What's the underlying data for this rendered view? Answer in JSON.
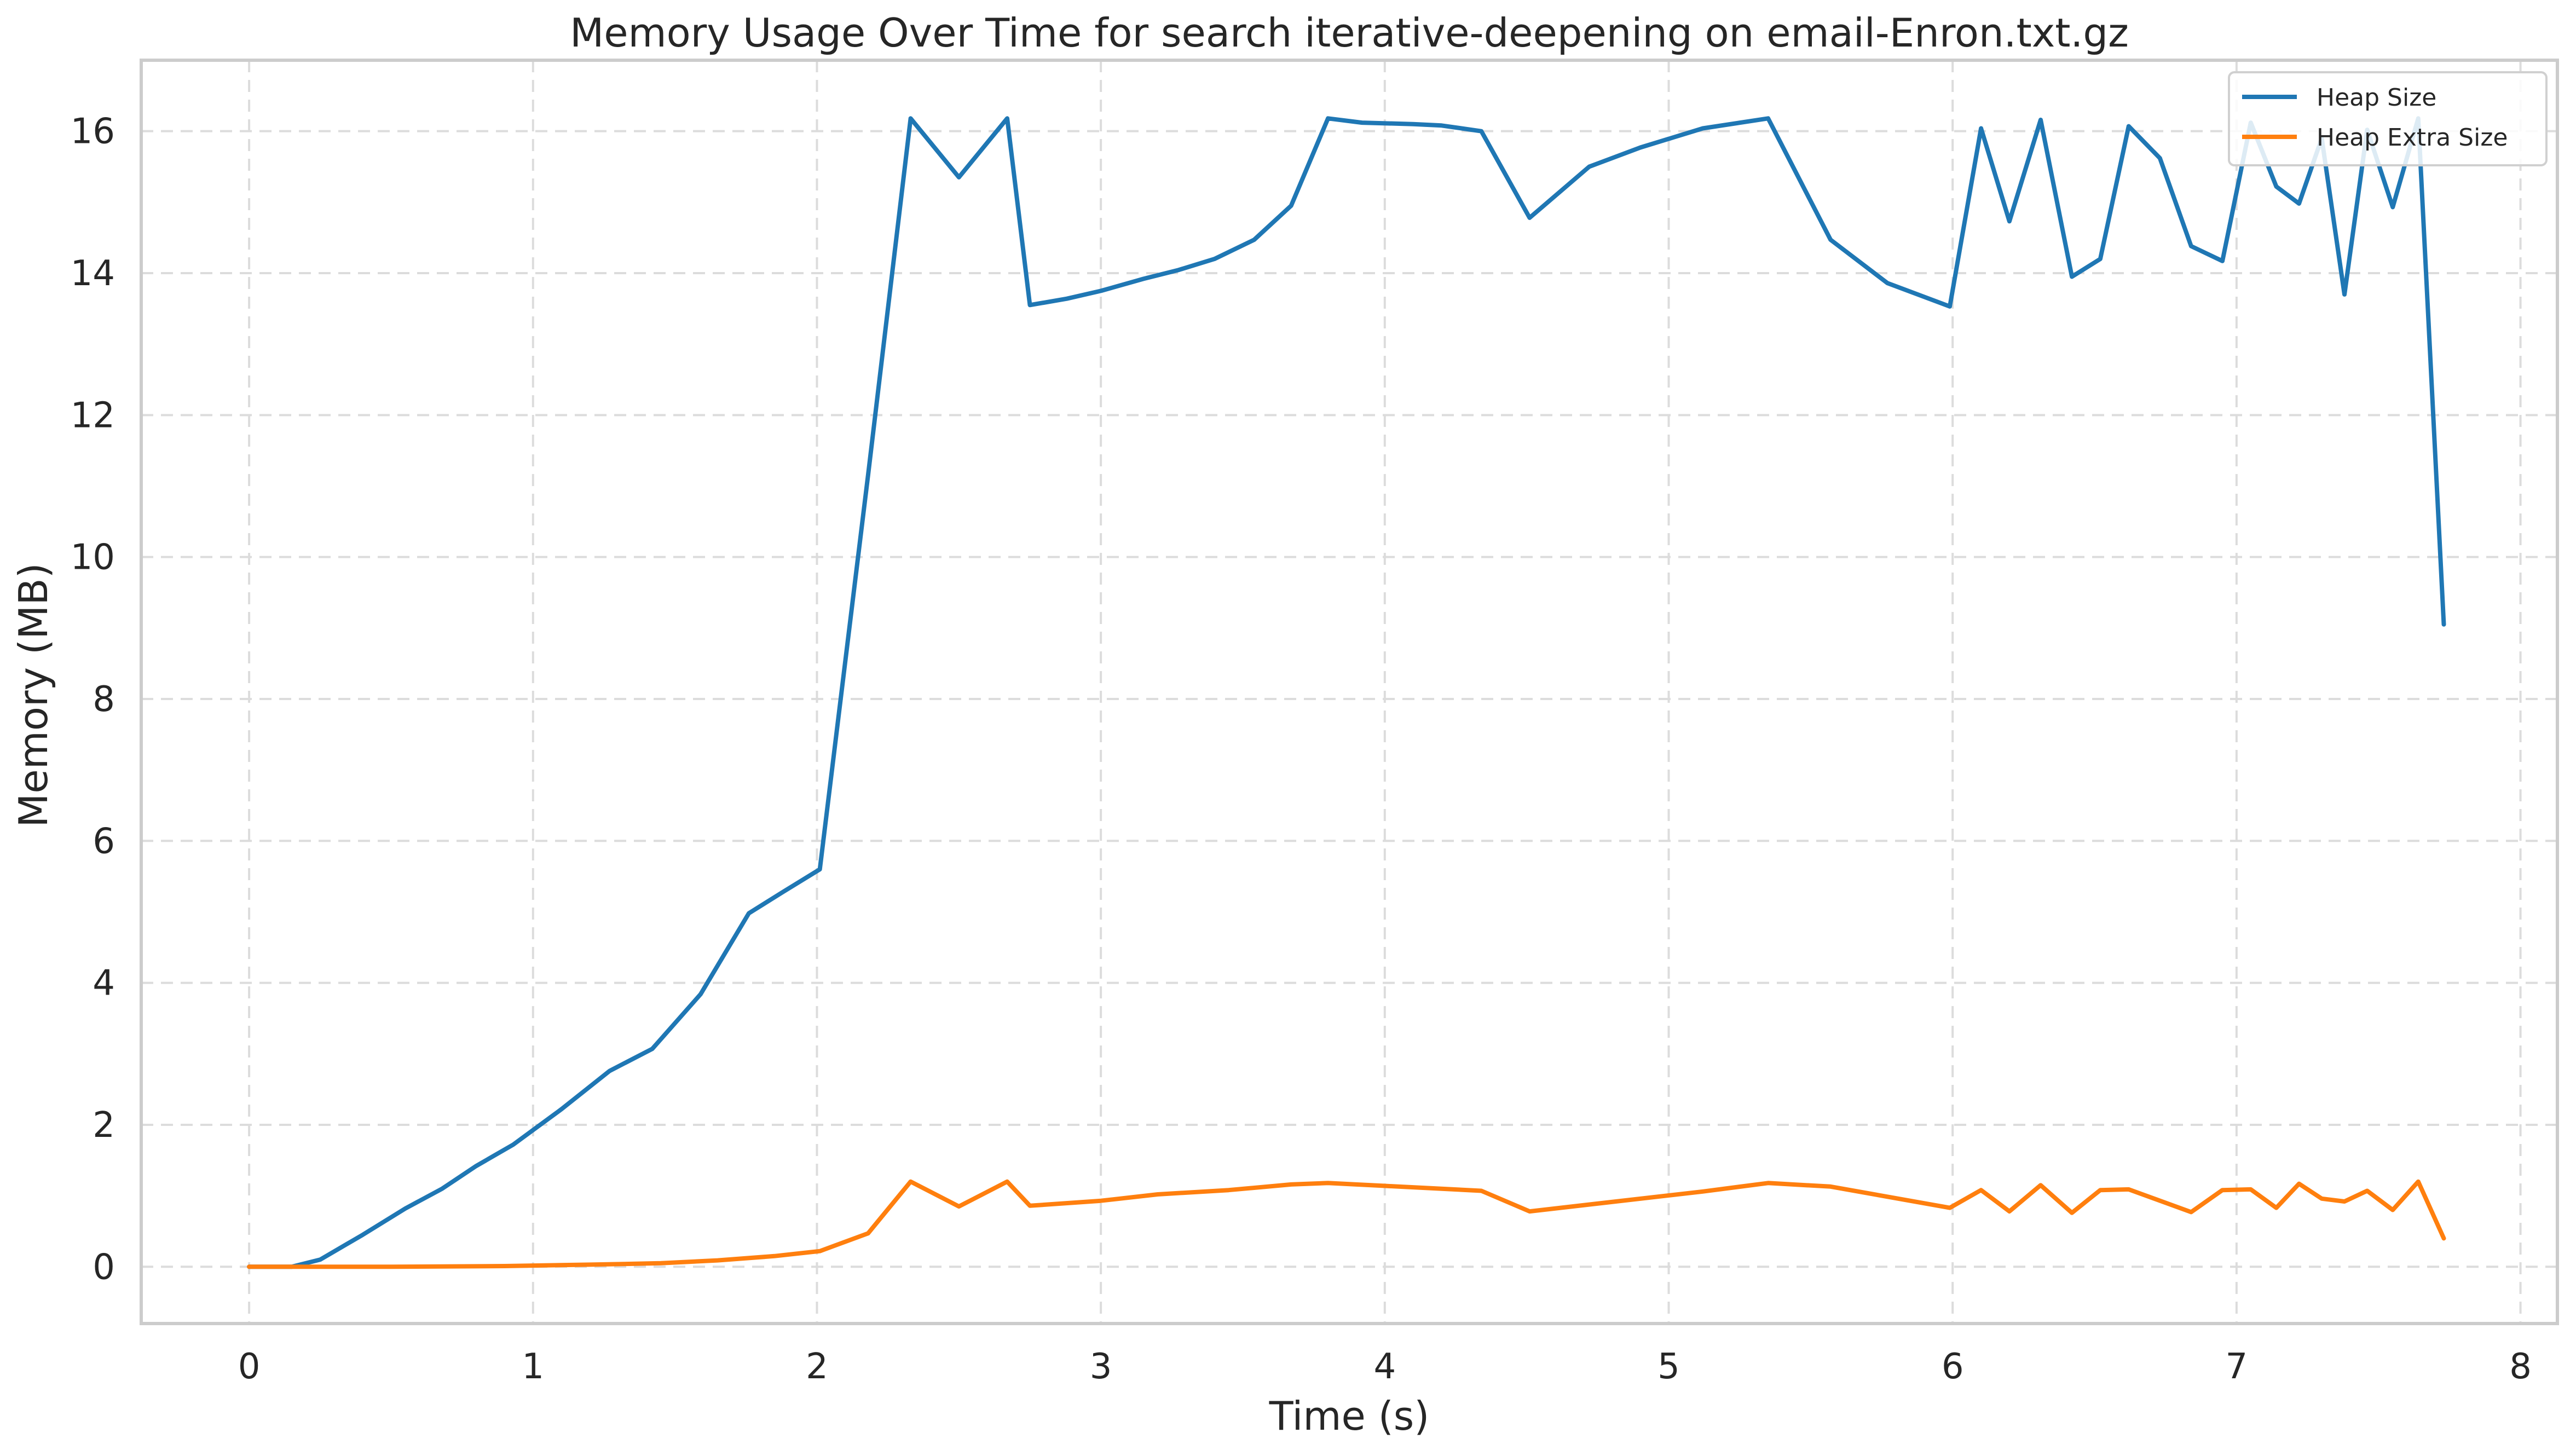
{
  "chart_data": {
    "type": "line",
    "title": "Memory Usage Over Time for search iterative-deepening on email-Enron.txt.gz",
    "xlabel": "Time (s)",
    "ylabel": "Memory (MB)",
    "xlim": [
      -0.38,
      8.13
    ],
    "ylim": [
      -0.8,
      17.0
    ],
    "xticks": [
      0,
      1,
      2,
      3,
      4,
      5,
      6,
      7,
      8
    ],
    "yticks": [
      0,
      2,
      4,
      6,
      8,
      10,
      12,
      14,
      16
    ],
    "grid": true,
    "legend_position": "top-right",
    "series": [
      {
        "name": "Heap Size",
        "color": "#1f77b4",
        "points": [
          [
            0.0,
            0.0
          ],
          [
            0.15,
            0.0
          ],
          [
            0.25,
            0.1
          ],
          [
            0.4,
            0.45
          ],
          [
            0.55,
            0.82
          ],
          [
            0.68,
            1.1
          ],
          [
            0.8,
            1.42
          ],
          [
            0.93,
            1.72
          ],
          [
            1.1,
            2.22
          ],
          [
            1.27,
            2.76
          ],
          [
            1.42,
            3.07
          ],
          [
            1.59,
            3.84
          ],
          [
            1.76,
            4.98
          ],
          [
            1.88,
            5.28
          ],
          [
            2.01,
            5.6
          ],
          [
            2.18,
            11.15
          ],
          [
            2.33,
            16.18
          ],
          [
            2.5,
            15.35
          ],
          [
            2.67,
            16.18
          ],
          [
            2.75,
            13.55
          ],
          [
            2.88,
            13.64
          ],
          [
            3.0,
            13.75
          ],
          [
            3.15,
            13.92
          ],
          [
            3.27,
            14.04
          ],
          [
            3.4,
            14.2
          ],
          [
            3.54,
            14.47
          ],
          [
            3.67,
            14.95
          ],
          [
            3.8,
            16.18
          ],
          [
            3.92,
            16.12
          ],
          [
            4.1,
            16.1
          ],
          [
            4.2,
            16.08
          ],
          [
            4.34,
            16.0
          ],
          [
            4.51,
            14.78
          ],
          [
            4.72,
            15.5
          ],
          [
            4.9,
            15.77
          ],
          [
            5.12,
            16.04
          ],
          [
            5.35,
            16.18
          ],
          [
            5.57,
            14.47
          ],
          [
            5.77,
            13.86
          ],
          [
            5.99,
            13.53
          ],
          [
            6.1,
            16.04
          ],
          [
            6.2,
            14.73
          ],
          [
            6.31,
            16.16
          ],
          [
            6.42,
            13.95
          ],
          [
            6.52,
            14.2
          ],
          [
            6.62,
            16.07
          ],
          [
            6.73,
            15.62
          ],
          [
            6.84,
            14.38
          ],
          [
            6.95,
            14.17
          ],
          [
            7.05,
            16.12
          ],
          [
            7.14,
            15.22
          ],
          [
            7.22,
            14.98
          ],
          [
            7.3,
            15.9
          ],
          [
            7.38,
            13.7
          ],
          [
            7.46,
            16.02
          ],
          [
            7.55,
            14.93
          ],
          [
            7.64,
            16.18
          ],
          [
            7.73,
            9.05
          ]
        ]
      },
      {
        "name": "Heap Extra Size",
        "color": "#ff7f0e",
        "points": [
          [
            0.0,
            0.0
          ],
          [
            0.15,
            0.0
          ],
          [
            0.5,
            0.0
          ],
          [
            0.9,
            0.01
          ],
          [
            1.2,
            0.03
          ],
          [
            1.45,
            0.05
          ],
          [
            1.65,
            0.09
          ],
          [
            1.85,
            0.15
          ],
          [
            2.01,
            0.22
          ],
          [
            2.18,
            0.47
          ],
          [
            2.33,
            1.2
          ],
          [
            2.5,
            0.85
          ],
          [
            2.67,
            1.2
          ],
          [
            2.75,
            0.86
          ],
          [
            3.0,
            0.93
          ],
          [
            3.2,
            1.02
          ],
          [
            3.45,
            1.08
          ],
          [
            3.67,
            1.16
          ],
          [
            3.8,
            1.18
          ],
          [
            4.0,
            1.14
          ],
          [
            4.34,
            1.07
          ],
          [
            4.51,
            0.78
          ],
          [
            5.12,
            1.06
          ],
          [
            5.35,
            1.18
          ],
          [
            5.57,
            1.13
          ],
          [
            5.99,
            0.83
          ],
          [
            6.1,
            1.08
          ],
          [
            6.2,
            0.78
          ],
          [
            6.31,
            1.15
          ],
          [
            6.42,
            0.76
          ],
          [
            6.52,
            1.08
          ],
          [
            6.62,
            1.09
          ],
          [
            6.84,
            0.77
          ],
          [
            6.95,
            1.08
          ],
          [
            7.05,
            1.09
          ],
          [
            7.14,
            0.83
          ],
          [
            7.22,
            1.17
          ],
          [
            7.3,
            0.96
          ],
          [
            7.38,
            0.92
          ],
          [
            7.46,
            1.07
          ],
          [
            7.55,
            0.8
          ],
          [
            7.64,
            1.2
          ],
          [
            7.73,
            0.4
          ]
        ]
      }
    ]
  }
}
